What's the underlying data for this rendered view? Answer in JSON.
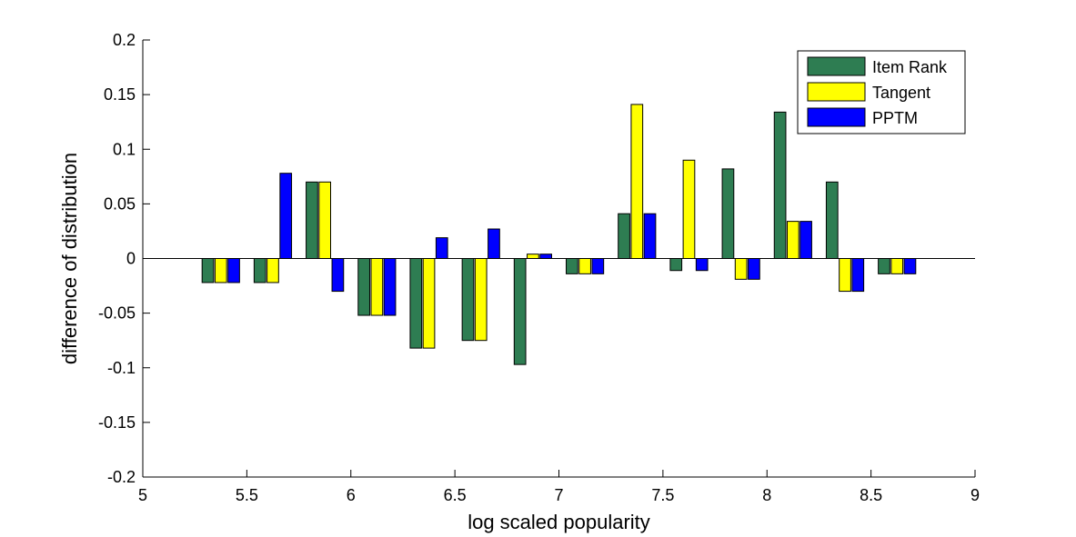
{
  "chart_data": {
    "type": "bar",
    "title": "",
    "xlabel": "log scaled popularity",
    "ylabel": "difference of distribution",
    "xlim": [
      5,
      9
    ],
    "ylim": [
      -0.2,
      0.2
    ],
    "xticks": [
      "5",
      "5.5",
      "6",
      "6.5",
      "7",
      "7.5",
      "8",
      "8.5",
      "9"
    ],
    "xtick_values": [
      5,
      5.5,
      6,
      6.5,
      7,
      7.5,
      8,
      8.5,
      9
    ],
    "yticks": [
      "-0.2",
      "-0.15",
      "-0.1",
      "-0.05",
      "0",
      "0.05",
      "0.1",
      "0.15",
      "0.2"
    ],
    "ytick_values": [
      -0.2,
      -0.15,
      -0.1,
      -0.05,
      0,
      0.05,
      0.1,
      0.15,
      0.2
    ],
    "x": [
      5.375,
      5.625,
      5.875,
      6.125,
      6.375,
      6.625,
      6.875,
      7.125,
      7.375,
      7.625,
      7.875,
      8.125,
      8.375,
      8.625
    ],
    "series": [
      {
        "name": "Item Rank",
        "color": "#2e7d52",
        "values": [
          -0.022,
          -0.022,
          0.07,
          -0.052,
          -0.082,
          -0.075,
          -0.097,
          -0.014,
          0.041,
          -0.011,
          0.082,
          0.134,
          0.07,
          -0.014
        ]
      },
      {
        "name": "Tangent",
        "color": "#ffff00",
        "values": [
          -0.022,
          -0.022,
          0.07,
          -0.052,
          -0.082,
          -0.075,
          0.004,
          -0.014,
          0.141,
          0.09,
          -0.019,
          0.034,
          -0.03,
          -0.014
        ]
      },
      {
        "name": "PPTM",
        "color": "#0000ff",
        "values": [
          -0.022,
          0.078,
          -0.03,
          -0.052,
          0.019,
          0.027,
          0.004,
          -0.014,
          0.041,
          -0.011,
          -0.019,
          0.034,
          -0.03,
          -0.014
        ]
      }
    ],
    "grid": false,
    "legend_position": "top-right"
  }
}
